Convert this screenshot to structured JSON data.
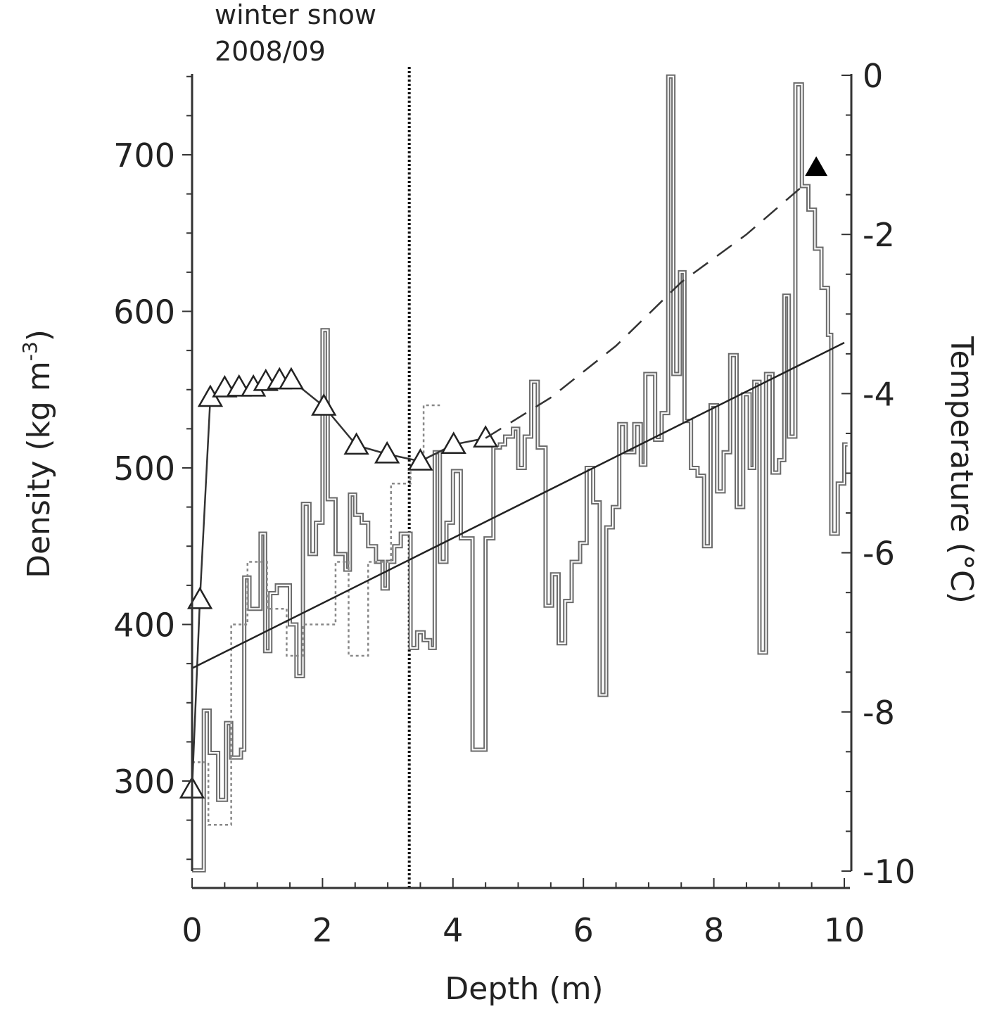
{
  "chart_data": {
    "type": "line",
    "annotation": [
      "winter snow",
      "2008/09"
    ],
    "annotation_depth": 3.33,
    "xlabel": "Depth (m)",
    "ylabel_left": "Density (kg m",
    "ylabel_left_sup": "-3",
    "ylabel_left_close": ")",
    "ylabel_right": "Temperature (°C)",
    "xlim": [
      0,
      10
    ],
    "ylim_left": [
      243,
      752
    ],
    "ylim_right": [
      -10,
      0
    ],
    "x_ticks": [
      "0",
      "2",
      "4",
      "6",
      "8",
      "10"
    ],
    "x_tick_values": [
      0,
      2,
      4,
      6,
      8,
      10
    ],
    "left_ticks": [
      "300",
      "400",
      "500",
      "600",
      "700"
    ],
    "left_tick_values": [
      300,
      400,
      500,
      600,
      700
    ],
    "right_ticks": [
      "0",
      "-2",
      "-4",
      "-6",
      "-8",
      "-10"
    ],
    "right_tick_values": [
      0,
      -2,
      -4,
      -6,
      -8,
      -10
    ],
    "series": [
      {
        "name": "density profile",
        "axis": "left",
        "style": "step-solid",
        "depth_edges": [
          0,
          0.18,
          0.27,
          0.4,
          0.52,
          0.6,
          0.75,
          0.8,
          0.88,
          0.97,
          1.05,
          1.12,
          1.2,
          1.3,
          1.5,
          1.6,
          1.7,
          1.8,
          1.9,
          2.0,
          2.08,
          2.2,
          2.35,
          2.42,
          2.5,
          2.6,
          2.7,
          2.82,
          2.92,
          3.0,
          3.1,
          3.2,
          3.35,
          3.45,
          3.55,
          3.65,
          3.72,
          3.8,
          3.9,
          4.0,
          4.12,
          4.3,
          4.5,
          4.62,
          4.72,
          4.8,
          4.92,
          5.0,
          5.1,
          5.2,
          5.3,
          5.42,
          5.52,
          5.62,
          5.72,
          5.82,
          5.95,
          6.05,
          6.15,
          6.25,
          6.35,
          6.45,
          6.55,
          6.65,
          6.78,
          6.88,
          6.95,
          7.1,
          7.2,
          7.3,
          7.38,
          7.48,
          7.55,
          7.65,
          7.75,
          7.85,
          7.95,
          8.05,
          8.15,
          8.25,
          8.35,
          8.45,
          8.55,
          8.62,
          8.7,
          8.8,
          8.9,
          9.0,
          9.08,
          9.15,
          9.25,
          9.35,
          9.45,
          9.55,
          9.65,
          9.75,
          9.8,
          9.9,
          10.0,
          10.05
        ],
        "values": [
          243,
          345,
          318,
          288,
          337,
          315,
          320,
          430,
          410,
          410,
          458,
          383,
          420,
          425,
          400,
          367,
          477,
          445,
          465,
          588,
          480,
          445,
          435,
          483,
          470,
          465,
          450,
          440,
          423,
          440,
          450,
          458,
          385,
          395,
          390,
          385,
          510,
          440,
          465,
          498,
          455,
          320,
          455,
          513,
          515,
          520,
          525,
          500,
          520,
          555,
          513,
          412,
          432,
          388,
          415,
          440,
          452,
          500,
          478,
          355,
          462,
          475,
          528,
          510,
          528,
          502,
          560,
          518,
          535,
          750,
          560,
          625,
          530,
          500,
          495,
          450,
          540,
          485,
          510,
          572,
          475,
          547,
          500,
          555,
          382,
          560,
          497,
          505,
          610,
          520,
          745,
          680,
          665,
          640,
          615,
          585,
          458,
          490,
          515
        ]
      },
      {
        "name": "density profile (dotted)",
        "axis": "left",
        "style": "step-dotted",
        "depth_edges": [
          0,
          0.25,
          0.6,
          0.85,
          1.15,
          1.45,
          1.7,
          2.2,
          2.4,
          2.7,
          3.05,
          3.35,
          3.55,
          3.8
        ],
        "values": [
          312,
          272,
          400,
          440,
          410,
          380,
          400,
          440,
          380,
          440,
          490,
          500,
          540
        ]
      },
      {
        "name": "temperature (open triangles)",
        "axis": "right",
        "style": "line-markers",
        "x": [
          0,
          0.12,
          0.28,
          0.5,
          0.72,
          0.94,
          1.13,
          1.34,
          1.52,
          2.02,
          2.52,
          2.99,
          3.5,
          4.01,
          4.5
        ],
        "y": [
          -8.97,
          -6.59,
          -4.05,
          -3.93,
          -3.92,
          -3.92,
          -3.85,
          -3.83,
          -3.83,
          -4.16,
          -4.65,
          -4.76,
          -4.85,
          -4.64,
          -4.56
        ]
      },
      {
        "name": "temperature extrapolation",
        "axis": "right",
        "style": "dashed",
        "x": [
          4.5,
          5.5,
          6.5,
          7.5,
          8.5,
          9.35
        ],
        "y": [
          -4.56,
          -4.05,
          -3.4,
          -2.6,
          -2.0,
          -1.4
        ]
      },
      {
        "name": "temperature (filled triangle)",
        "axis": "right",
        "style": "filled-marker",
        "x": [
          9.57
        ],
        "y": [
          -1.15
        ]
      },
      {
        "name": "density linear fit",
        "axis": "left",
        "style": "solid",
        "x": [
          0,
          10
        ],
        "y": [
          372,
          580
        ]
      }
    ]
  }
}
